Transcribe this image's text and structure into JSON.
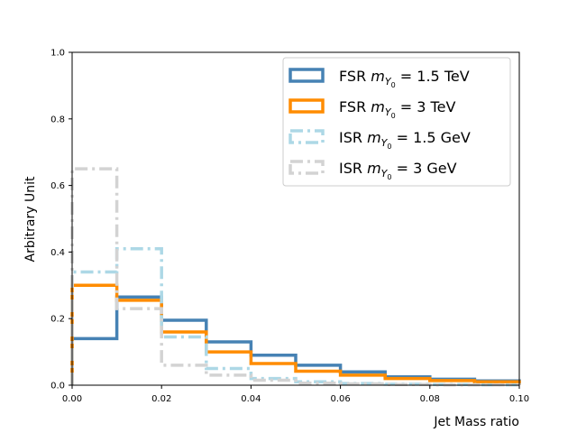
{
  "chart_data": {
    "type": "step-histogram",
    "xlabel": "Jet Mass ratio",
    "ylabel": "Arbitrary Unit",
    "xlim": [
      0.0,
      0.1
    ],
    "ylim": [
      0.0,
      1.0
    ],
    "xticks": [
      "0.00",
      "0.02",
      "0.04",
      "0.06",
      "0.08",
      "0.10"
    ],
    "yticks": [
      "0.0",
      "0.2",
      "0.4",
      "0.6",
      "0.8",
      "1.0"
    ],
    "grid": false,
    "legend_position": "top-right",
    "bin_edges": [
      0.0,
      0.01,
      0.02,
      0.03,
      0.04,
      0.05,
      0.06,
      0.07,
      0.08,
      0.09,
      0.1
    ],
    "series": [
      {
        "label_prefix": "FSR ",
        "label_mass": "m",
        "label_sub": "Y",
        "label_subsub": "0",
        "label_suffix": " = 1.5 TeV",
        "color": "#4682b4",
        "style": "solid",
        "values": [
          0.14,
          0.265,
          0.195,
          0.13,
          0.09,
          0.06,
          0.04,
          0.025,
          0.018,
          0.013
        ]
      },
      {
        "label_prefix": "FSR ",
        "label_mass": "m",
        "label_sub": "Y",
        "label_subsub": "0",
        "label_suffix": " = 3 TeV",
        "color": "#ff8c00",
        "style": "solid",
        "values": [
          0.3,
          0.255,
          0.16,
          0.1,
          0.065,
          0.042,
          0.03,
          0.02,
          0.014,
          0.01
        ]
      },
      {
        "label_prefix": "ISR ",
        "label_mass": "m",
        "label_sub": "Y",
        "label_subsub": "0",
        "label_suffix": " = 1.5 GeV",
        "color": "#add8e6",
        "style": "dashdot",
        "values": [
          0.34,
          0.41,
          0.145,
          0.05,
          0.02,
          0.01,
          0.005,
          0.003,
          0.002,
          0.001
        ]
      },
      {
        "label_prefix": "ISR ",
        "label_mass": "m",
        "label_sub": "Y",
        "label_subsub": "0",
        "label_suffix": " = 3 GeV",
        "color": "#d3d3d3",
        "style": "dashdot",
        "values": [
          0.65,
          0.23,
          0.06,
          0.03,
          0.015,
          0.006,
          0.004,
          0.002,
          0.001,
          0.001
        ]
      }
    ]
  }
}
